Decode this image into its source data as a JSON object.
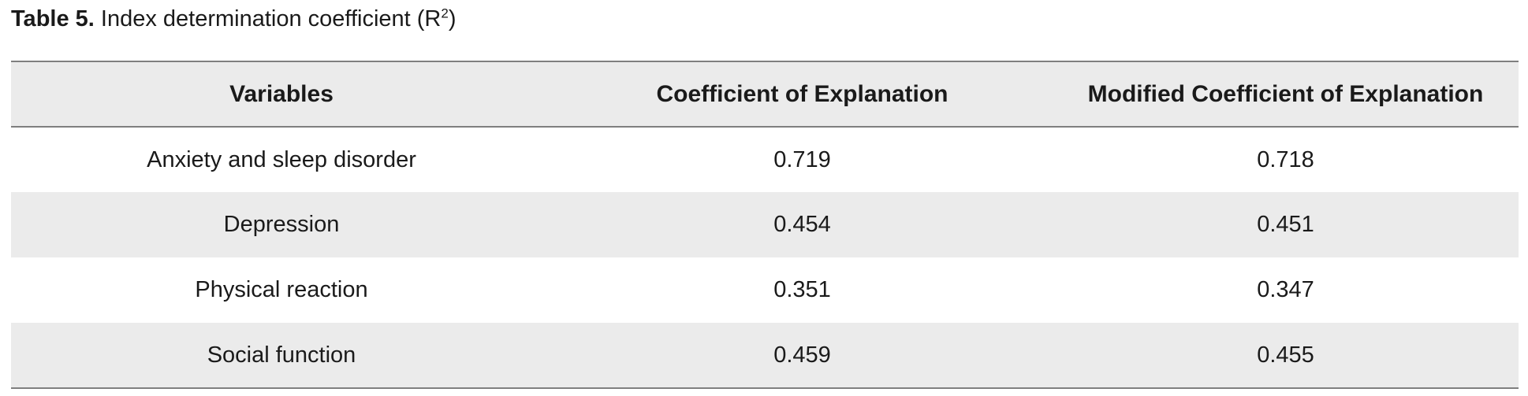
{
  "caption": {
    "label": "Table 5.",
    "text": " Index determination coefficient (R",
    "superscript": "2",
    "suffix": ")"
  },
  "table": {
    "headers": [
      "Variables",
      "Coefficient of Explanation",
      "Modified Coefficient of Explanation"
    ],
    "rows": [
      [
        "Anxiety and sleep disorder",
        "0.719",
        "0.718"
      ],
      [
        "Depression",
        "0.454",
        "0.451"
      ],
      [
        "Physical reaction",
        "0.351",
        "0.347"
      ],
      [
        "Social function",
        "0.459",
        "0.455"
      ]
    ]
  },
  "colors": {
    "header_bg": "#ebebeb",
    "alt_row_bg": "#ebebeb",
    "rule": "#7f7f7f"
  }
}
